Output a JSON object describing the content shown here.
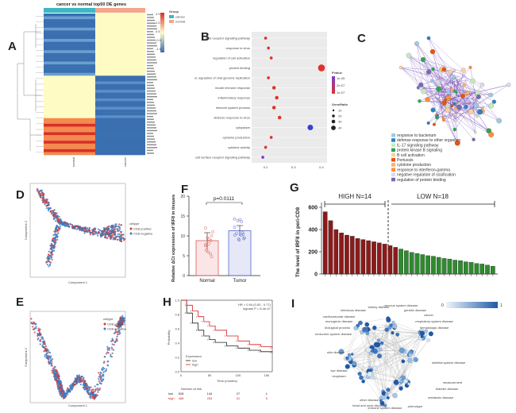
{
  "panels": {
    "a": {
      "label": "A",
      "title": "cancer vs normal top50 DE genes",
      "legend_title": "Group",
      "legend_items": [
        "cancer",
        "normal"
      ],
      "color_keys": [
        "2.5",
        "1.5",
        "0.5",
        "-0.5",
        "-1.5"
      ],
      "colors": {
        "cancer": "#3bb8c4",
        "normal": "#f2a68a",
        "high": "#d7302a",
        "mid": "#fefcc4",
        "low": "#3a6fb0"
      },
      "col_labels": [
        "normal",
        "cancer"
      ]
    },
    "b": {
      "label": "B",
      "legend_title_color": "Pvalue",
      "legend_title_size": "GeneRatio",
      "color_keys": [
        "1e-05",
        "2e-07",
        "1e-07"
      ],
      "size_keys": [
        "10",
        "20",
        "30",
        "40"
      ],
      "chart_data": {
        "type": "scatter",
        "terms": [
          "Ig-E receptor signaling pathway",
          "response to virus",
          "regulation of cell activation",
          "protein binding",
          "negative regulation of viral genome replication",
          "innate immune response",
          "inflammatory response",
          "immune system process",
          "defense response to virus",
          "cytoplasm",
          "cytokine production",
          "cytokine activity",
          "cell surface receptor signaling pathway"
        ],
        "x_ticks": [
          "0.2",
          "0.3",
          "0.4"
        ],
        "points": [
          {
            "term": "Ig-E receptor signaling pathway",
            "x": 0.2,
            "color": "#e0332b",
            "size": 10
          },
          {
            "term": "response to virus",
            "x": 0.21,
            "color": "#e0332b",
            "size": 10
          },
          {
            "term": "regulation of cell activation",
            "x": 0.22,
            "color": "#e0332b",
            "size": 10
          },
          {
            "term": "protein binding",
            "x": 0.4,
            "color": "#e0332b",
            "size": 40
          },
          {
            "term": "negative regulation of viral genome replication",
            "x": 0.21,
            "color": "#e0332b",
            "size": 10
          },
          {
            "term": "innate immune response",
            "x": 0.23,
            "color": "#e0332b",
            "size": 15
          },
          {
            "term": "inflammatory response",
            "x": 0.24,
            "color": "#e0332b",
            "size": 15
          },
          {
            "term": "immune system process",
            "x": 0.23,
            "color": "#e0332b",
            "size": 15
          },
          {
            "term": "defense response to virus",
            "x": 0.25,
            "color": "#e0332b",
            "size": 15
          },
          {
            "term": "cytoplasm",
            "x": 0.36,
            "color": "#3344cc",
            "size": 30
          },
          {
            "term": "cytokine production",
            "x": 0.22,
            "color": "#e0332b",
            "size": 10
          },
          {
            "term": "cytokine activity",
            "x": 0.2,
            "color": "#e0332b",
            "size": 10
          },
          {
            "term": "cell surface receptor signaling pathway",
            "x": 0.19,
            "color": "#7a3fd0",
            "size": 10
          }
        ]
      }
    },
    "c": {
      "label": "C",
      "legend": [
        {
          "text": "response to bacterium",
          "color": "#9ecae1"
        },
        {
          "text": "defense response to other organism",
          "color": "#3182bd"
        },
        {
          "text": "IL-17 signaling pathway",
          "color": "#c7e9c0"
        },
        {
          "text": "protein kinase B signaling",
          "color": "#31a354"
        },
        {
          "text": "B cell activation",
          "color": "#fdd0a2"
        },
        {
          "text": "Pertussis",
          "color": "#e6550d"
        },
        {
          "text": "cytokine production",
          "color": "#fdae6b"
        },
        {
          "text": "response to interferon-gamma",
          "color": "#fd8d3c"
        },
        {
          "text": "negative regulation of ossification",
          "color": "#dadaeb"
        },
        {
          "text": "regulation of protein binding",
          "color": "#756bb1"
        }
      ]
    },
    "d": {
      "label": "D",
      "legend_title": "cellype",
      "legend_items": [
        "CD8 positive",
        "CD8 negative"
      ],
      "xlabel": "Component 1",
      "ylabel": "Component 2"
    },
    "e": {
      "label": "E",
      "legend_title": "cellype",
      "legend_items": [
        "CD8 positive",
        "CD8 negative"
      ],
      "xlabel": "Component 1",
      "ylabel": "Component 2"
    },
    "f": {
      "label": "F",
      "pvalue": "p=0.0111",
      "ylabel": "Relative ΔCt expression of IRF8 in tissues",
      "y_ticks": [
        "0",
        "5",
        "10",
        "15",
        "20"
      ],
      "chart_data": {
        "type": "bar",
        "categories": [
          "Normal",
          "Tumor"
        ],
        "values": [
          8.8,
          11.3
        ],
        "errors": [
          2.0,
          1.3
        ],
        "ylim": [
          0,
          20
        ],
        "colors": [
          "#e05a5a",
          "#5566cc"
        ]
      }
    },
    "g": {
      "label": "G",
      "high_label": "HIGH N=14",
      "low_label": "LOW N=18",
      "ylabel": "The level of IRF8 in peri-CD8",
      "y_ticks": [
        "0",
        "200",
        "400",
        "600"
      ],
      "chart_data": {
        "type": "bar",
        "ylim": [
          0,
          600
        ],
        "values": [
          560,
          480,
          400,
          370,
          350,
          340,
          320,
          310,
          300,
          290,
          280,
          270,
          255,
          240,
          225,
          210,
          195,
          185,
          175,
          165,
          160,
          150,
          140,
          135,
          125,
          120,
          110,
          105,
          95,
          90,
          80,
          70
        ],
        "high_n": 14,
        "colors": {
          "high": "#8b1a1a",
          "low": "#2e8b2e"
        }
      }
    },
    "h": {
      "label": "H",
      "stats": "HR = 0.54 (0.53 - 0.77)",
      "logrank": "logrank P = 8.4e-07",
      "xlabel": "Time (months)",
      "ylabel": "Probability",
      "legend_title": "Expression",
      "legend_items": [
        "low",
        "high"
      ],
      "x_ticks": [
        "0",
        "50",
        "100",
        "150"
      ],
      "y_ticks": [
        "0.0",
        "0.2",
        "0.4",
        "0.6",
        "0.8",
        "1.0"
      ],
      "risk_title": "Number at risk",
      "risk_rows": [
        {
          "label": "low",
          "values": [
            "528",
            "144",
            "27",
            "1"
          ]
        },
        {
          "label": "high",
          "values": [
            "468",
            "254",
            "31",
            "5"
          ]
        }
      ],
      "chart_data": {
        "type": "line",
        "series": [
          {
            "name": "low",
            "color": "#222222",
            "x": [
              0,
              10,
              20,
              30,
              40,
              50,
              60,
              80,
              100,
              120,
              140,
              160
            ],
            "y": [
              1.0,
              0.82,
              0.68,
              0.58,
              0.5,
              0.45,
              0.41,
              0.36,
              0.33,
              0.3,
              0.28,
              0.27
            ]
          },
          {
            "name": "high",
            "color": "#d62020",
            "x": [
              0,
              10,
              20,
              30,
              40,
              50,
              60,
              80,
              100,
              120,
              140,
              160
            ],
            "y": [
              1.0,
              0.93,
              0.85,
              0.77,
              0.7,
              0.64,
              0.58,
              0.5,
              0.43,
              0.38,
              0.35,
              0.33
            ]
          }
        ],
        "xlim": [
          0,
          160
        ],
        "ylim": [
          0,
          1
        ]
      }
    },
    "i": {
      "label": "I",
      "scale_low": "0",
      "scale_high": "1",
      "nodes": [
        "kidney disease",
        "nervous system disease",
        "genetic disease",
        "cancer",
        "respiratory system disease",
        "hematologic disease",
        "infectious disease",
        "cardiovascular disease",
        "monogenic disease",
        "biological process",
        "endocrine system disease",
        "skin disease",
        "eye disease",
        "neoplasm",
        "skeletal system disease",
        "other disease",
        "head and neck disorder",
        "measurement",
        "bladder disease",
        "metabolic disease",
        "immune system disease",
        "phenotype"
      ]
    }
  }
}
